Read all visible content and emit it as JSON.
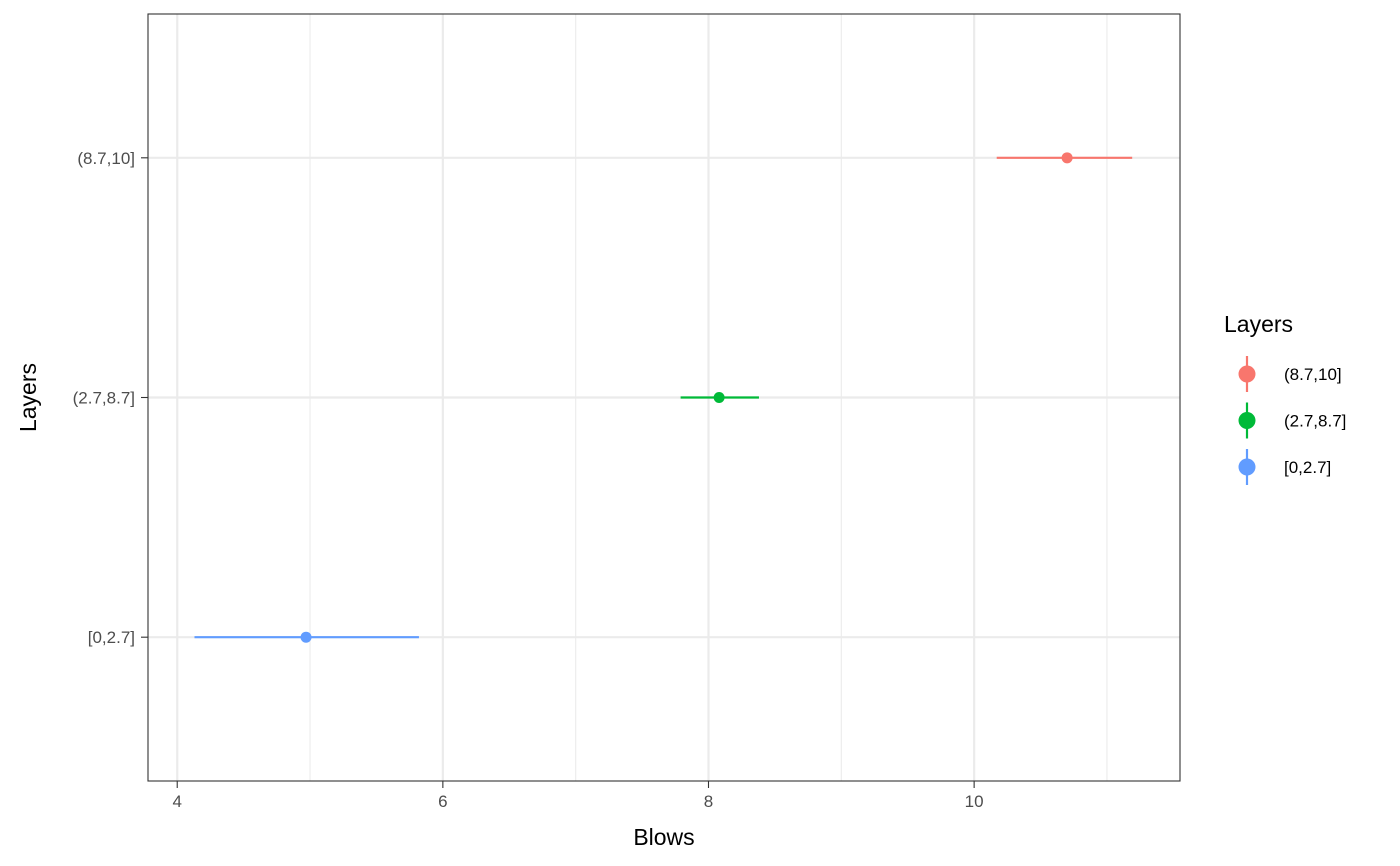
{
  "chart_data": {
    "type": "scatter",
    "title": "",
    "xlabel": "Blows",
    "ylabel": "Layers",
    "xlim": [
      3.78,
      11.55
    ],
    "x_ticks": [
      4,
      6,
      8,
      10
    ],
    "x_tick_labels": [
      "4",
      "6",
      "8",
      "10"
    ],
    "categories": [
      "[0,2.7]",
      "(2.7,8.7]",
      "(8.7,10]"
    ],
    "series": [
      {
        "name": "(8.7,10]",
        "category": "(8.7,10]",
        "x": 10.7,
        "xmin": 10.17,
        "xmax": 11.19,
        "color": "#F8766D"
      },
      {
        "name": "(2.7,8.7]",
        "category": "(2.7,8.7]",
        "x": 8.08,
        "xmin": 7.79,
        "xmax": 8.38,
        "color": "#00BA38"
      },
      {
        "name": "[0,2.7]",
        "category": "[0,2.7]",
        "x": 4.97,
        "xmin": 4.13,
        "xmax": 5.82,
        "color": "#619CFF"
      }
    ],
    "legend": {
      "title": "Layers",
      "position": "right",
      "entries": [
        "(8.7,10]",
        "(2.7,8.7]",
        "[0,2.7]"
      ]
    },
    "grid": true
  }
}
